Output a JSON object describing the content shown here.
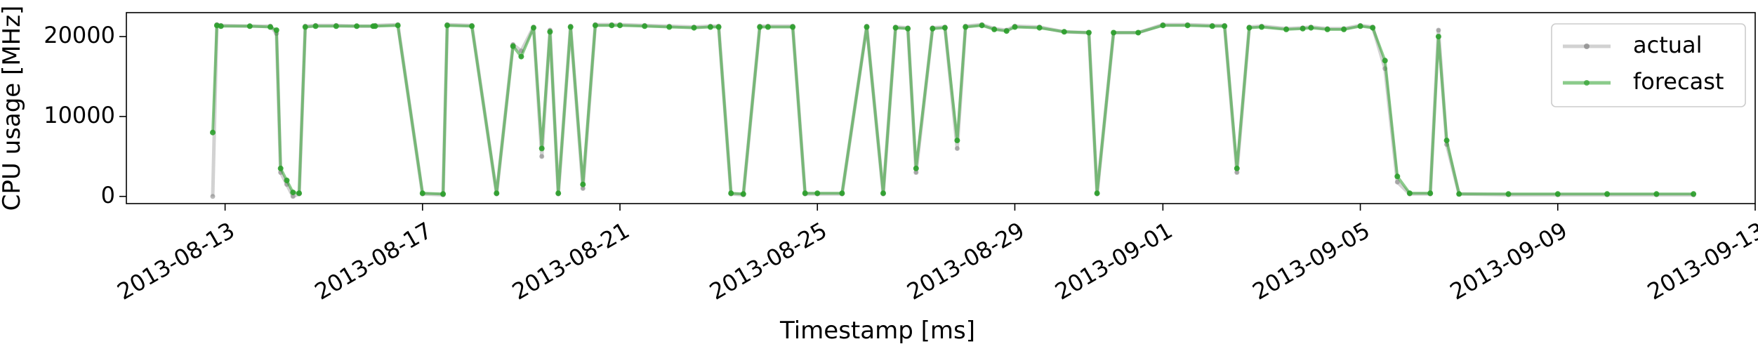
{
  "chart_data": {
    "type": "line",
    "xlabel": "Timestamp [ms]",
    "ylabel": "CPU usage [MHz]",
    "xlim": [
      "2013-08-11",
      "2013-09-13"
    ],
    "ylim": [
      -900,
      23000
    ],
    "grid": false,
    "legend_position": "top-right",
    "xticks": [
      {
        "date": "2013-08-13",
        "label": "2013-08-13"
      },
      {
        "date": "2013-08-17",
        "label": "2013-08-17"
      },
      {
        "date": "2013-08-21",
        "label": "2013-08-21"
      },
      {
        "date": "2013-08-25",
        "label": "2013-08-25"
      },
      {
        "date": "2013-08-29",
        "label": "2013-08-29"
      },
      {
        "date": "2013-09-01",
        "label": "2013-09-01"
      },
      {
        "date": "2013-09-05",
        "label": "2013-09-05"
      },
      {
        "date": "2013-09-09",
        "label": "2013-09-09"
      },
      {
        "date": "2013-09-13",
        "label": "2013-09-13"
      }
    ],
    "yticks": [
      {
        "value": 0,
        "label": "0"
      },
      {
        "value": 10000,
        "label": "10000"
      },
      {
        "value": 20000,
        "label": "20000"
      }
    ],
    "series": [
      {
        "name": "actual",
        "color": "#7f7f7f",
        "opacity": 0.35,
        "x": [
          "2013-08-12 18:00",
          "2013-08-12 20:00",
          "2013-08-12 22:00",
          "2013-08-13 12:00",
          "2013-08-13 22:00",
          "2013-08-14 01:00",
          "2013-08-14 03:00",
          "2013-08-14 06:00",
          "2013-08-14 09:00",
          "2013-08-14 12:00",
          "2013-08-14 15:00",
          "2013-08-14 20:00",
          "2013-08-15 06:00",
          "2013-08-15 16:00",
          "2013-08-16 00:00",
          "2013-08-16 01:00",
          "2013-08-16 12:00",
          "2013-08-17 00:00",
          "2013-08-17 10:00",
          "2013-08-17 12:00",
          "2013-08-18 00:00",
          "2013-08-18 12:00",
          "2013-08-18 20:00",
          "2013-08-19 00:00",
          "2013-08-19 06:00",
          "2013-08-19 10:00",
          "2013-08-19 14:00",
          "2013-08-19 18:00",
          "2013-08-20 00:00",
          "2013-08-20 06:00",
          "2013-08-20 12:00",
          "2013-08-20 20:00",
          "2013-08-21 00:00",
          "2013-08-21 12:00",
          "2013-08-22 00:00",
          "2013-08-22 12:00",
          "2013-08-22 20:00",
          "2013-08-23 00:00",
          "2013-08-23 06:00",
          "2013-08-23 12:00",
          "2013-08-23 20:00",
          "2013-08-24 00:00",
          "2013-08-24 12:00",
          "2013-08-24 18:00",
          "2013-08-25 00:00",
          "2013-08-25 12:00",
          "2013-08-26 00:00",
          "2013-08-26 08:00",
          "2013-08-26 14:00",
          "2013-08-26 20:00",
          "2013-08-27 00:00",
          "2013-08-27 08:00",
          "2013-08-27 14:00",
          "2013-08-27 20:00",
          "2013-08-28 00:00",
          "2013-08-28 08:00",
          "2013-08-28 14:00",
          "2013-08-28 20:00",
          "2013-08-29 00:00",
          "2013-08-29 12:00",
          "2013-08-30 00:00",
          "2013-08-30 12:00",
          "2013-08-30 16:00",
          "2013-08-31 00:00",
          "2013-08-31 12:00",
          "2013-09-01 00:00",
          "2013-09-01 12:00",
          "2013-09-02 00:00",
          "2013-09-02 06:00",
          "2013-09-02 12:00",
          "2013-09-02 18:00",
          "2013-09-03 00:00",
          "2013-09-03 12:00",
          "2013-09-03 20:00",
          "2013-09-04 00:00",
          "2013-09-04 08:00",
          "2013-09-04 16:00",
          "2013-09-05 00:00",
          "2013-09-05 06:00",
          "2013-09-05 12:00",
          "2013-09-05 18:00",
          "2013-09-06 00:00",
          "2013-09-06 10:00",
          "2013-09-06 14:00",
          "2013-09-06 18:00",
          "2013-09-07 00:00",
          "2013-09-08 00:00",
          "2013-09-09 00:00",
          "2013-09-10 00:00",
          "2013-09-11 00:00",
          "2013-09-11 18:00"
        ],
        "y": [
          0,
          21500,
          21400,
          21300,
          21300,
          20400,
          3000,
          1500,
          0,
          300,
          21300,
          21400,
          21400,
          21300,
          21300,
          21400,
          21500,
          300,
          200,
          21500,
          21400,
          300,
          19000,
          18200,
          21200,
          5000,
          20800,
          300,
          21300,
          1000,
          21500,
          21500,
          21500,
          21400,
          21300,
          21200,
          21300,
          21300,
          300,
          200,
          21300,
          21300,
          21300,
          300,
          300,
          300,
          21300,
          300,
          21200,
          21100,
          3000,
          21100,
          21200,
          6000,
          21300,
          21500,
          21000,
          20800,
          21300,
          21200,
          20600,
          20500,
          300,
          20500,
          20500,
          21500,
          21500,
          21400,
          21400,
          3000,
          21200,
          21300,
          21000,
          21100,
          21200,
          21000,
          21000,
          21400,
          21200,
          16000,
          1800,
          300,
          300,
          20800,
          6500,
          300,
          200,
          200,
          200,
          200,
          200
        ]
      },
      {
        "name": "forecast",
        "color": "#2ca02c",
        "opacity": 0.55,
        "x": [
          "2013-08-12 18:00",
          "2013-08-12 20:00",
          "2013-08-12 22:00",
          "2013-08-13 12:00",
          "2013-08-13 22:00",
          "2013-08-14 01:00",
          "2013-08-14 03:00",
          "2013-08-14 06:00",
          "2013-08-14 09:00",
          "2013-08-14 12:00",
          "2013-08-14 15:00",
          "2013-08-14 20:00",
          "2013-08-15 06:00",
          "2013-08-15 16:00",
          "2013-08-16 00:00",
          "2013-08-16 01:00",
          "2013-08-16 12:00",
          "2013-08-17 00:00",
          "2013-08-17 10:00",
          "2013-08-17 12:00",
          "2013-08-18 00:00",
          "2013-08-18 12:00",
          "2013-08-18 20:00",
          "2013-08-19 00:00",
          "2013-08-19 06:00",
          "2013-08-19 10:00",
          "2013-08-19 14:00",
          "2013-08-19 18:00",
          "2013-08-20 00:00",
          "2013-08-20 06:00",
          "2013-08-20 12:00",
          "2013-08-20 20:00",
          "2013-08-21 00:00",
          "2013-08-21 12:00",
          "2013-08-22 00:00",
          "2013-08-22 12:00",
          "2013-08-22 20:00",
          "2013-08-23 00:00",
          "2013-08-23 06:00",
          "2013-08-23 12:00",
          "2013-08-23 20:00",
          "2013-08-24 00:00",
          "2013-08-24 12:00",
          "2013-08-24 18:00",
          "2013-08-25 00:00",
          "2013-08-25 12:00",
          "2013-08-26 00:00",
          "2013-08-26 08:00",
          "2013-08-26 14:00",
          "2013-08-26 20:00",
          "2013-08-27 00:00",
          "2013-08-27 08:00",
          "2013-08-27 14:00",
          "2013-08-27 20:00",
          "2013-08-28 00:00",
          "2013-08-28 08:00",
          "2013-08-28 14:00",
          "2013-08-28 20:00",
          "2013-08-29 00:00",
          "2013-08-29 12:00",
          "2013-08-30 00:00",
          "2013-08-30 12:00",
          "2013-08-30 16:00",
          "2013-08-31 00:00",
          "2013-08-31 12:00",
          "2013-09-01 00:00",
          "2013-09-01 12:00",
          "2013-09-02 00:00",
          "2013-09-02 06:00",
          "2013-09-02 12:00",
          "2013-09-02 18:00",
          "2013-09-03 00:00",
          "2013-09-03 12:00",
          "2013-09-03 20:00",
          "2013-09-04 00:00",
          "2013-09-04 08:00",
          "2013-09-04 16:00",
          "2013-09-05 00:00",
          "2013-09-05 06:00",
          "2013-09-05 12:00",
          "2013-09-05 18:00",
          "2013-09-06 00:00",
          "2013-09-06 10:00",
          "2013-09-06 14:00",
          "2013-09-06 18:00",
          "2013-09-07 00:00",
          "2013-09-08 00:00",
          "2013-09-09 00:00",
          "2013-09-10 00:00",
          "2013-09-11 00:00",
          "2013-09-11 18:00"
        ],
        "y": [
          8000,
          21400,
          21300,
          21300,
          21200,
          20800,
          3500,
          2000,
          500,
          400,
          21200,
          21300,
          21300,
          21300,
          21300,
          21300,
          21400,
          400,
          300,
          21400,
          21300,
          400,
          18800,
          17500,
          21100,
          6000,
          20600,
          400,
          21200,
          1500,
          21400,
          21400,
          21400,
          21300,
          21200,
          21100,
          21200,
          21200,
          400,
          300,
          21200,
          21200,
          21200,
          400,
          400,
          400,
          21200,
          400,
          21100,
          21000,
          3500,
          21000,
          21100,
          7000,
          21200,
          21400,
          20900,
          20700,
          21200,
          21100,
          20600,
          20500,
          400,
          20500,
          20500,
          21400,
          21400,
          21300,
          21300,
          3500,
          21100,
          21200,
          20900,
          21000,
          21100,
          20900,
          20900,
          21300,
          21100,
          17000,
          2500,
          400,
          400,
          20000,
          7000,
          300,
          300,
          300,
          300,
          300,
          300
        ]
      }
    ]
  }
}
